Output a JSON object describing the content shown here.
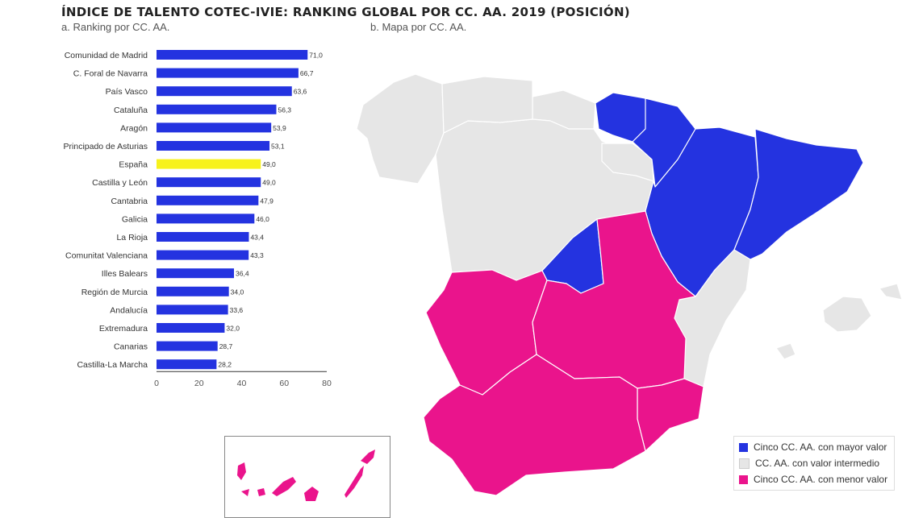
{
  "header": {
    "title": "ÍNDICE DE TALENTO COTEC-IVIE: RANKING GLOBAL POR CC. AA. 2019 (POSICIÓN)",
    "subtitle_a": "a. Ranking por CC. AA.",
    "subtitle_b": "b. Mapa por CC. AA."
  },
  "colors": {
    "bar": "#2433e0",
    "highlight": "#f7f21c",
    "top": "#2433e0",
    "middle": "#e6e6e6",
    "bottom": "#ea148c"
  },
  "chart_data": {
    "type": "bar",
    "orientation": "horizontal",
    "categories": [
      "Comunidad de Madrid",
      "C. Foral de Navarra",
      "País Vasco",
      "Cataluña",
      "Aragón",
      "Principado de Asturias",
      "España",
      "Castilla y León",
      "Cantabria",
      "Galicia",
      "La Rioja",
      "Comunitat Valenciana",
      "Illes Balears",
      "Región de Murcia",
      "Andalucía",
      "Extremadura",
      "Canarias",
      "Castilla-La Marcha"
    ],
    "values": [
      71.0,
      66.7,
      63.6,
      56.3,
      53.9,
      53.1,
      49.0,
      49.0,
      47.9,
      46.0,
      43.4,
      43.3,
      36.4,
      34.0,
      33.6,
      32.0,
      28.7,
      28.2
    ],
    "value_labels": [
      "71,0",
      "66,7",
      "63,6",
      "56,3",
      "53,9",
      "53,1",
      "49,0",
      "49,0",
      "47,9",
      "46,0",
      "43,4",
      "43,3",
      "36,4",
      "34,0",
      "33,6",
      "32,0",
      "28,7",
      "28,2"
    ],
    "highlight": "España",
    "xlim": [
      0,
      80
    ],
    "xticks": [
      "0",
      "20",
      "40",
      "60",
      "80"
    ],
    "xlabel": "",
    "ylabel": "",
    "grid": false
  },
  "legend": {
    "items": [
      {
        "label": "Cinco CC. AA. con mayor valor",
        "color": "#2433e0"
      },
      {
        "label": "CC. AA. con valor intermedio",
        "color": "#e6e6e6"
      },
      {
        "label": "Cinco CC. AA. con menor valor",
        "color": "#ea148c"
      }
    ]
  }
}
